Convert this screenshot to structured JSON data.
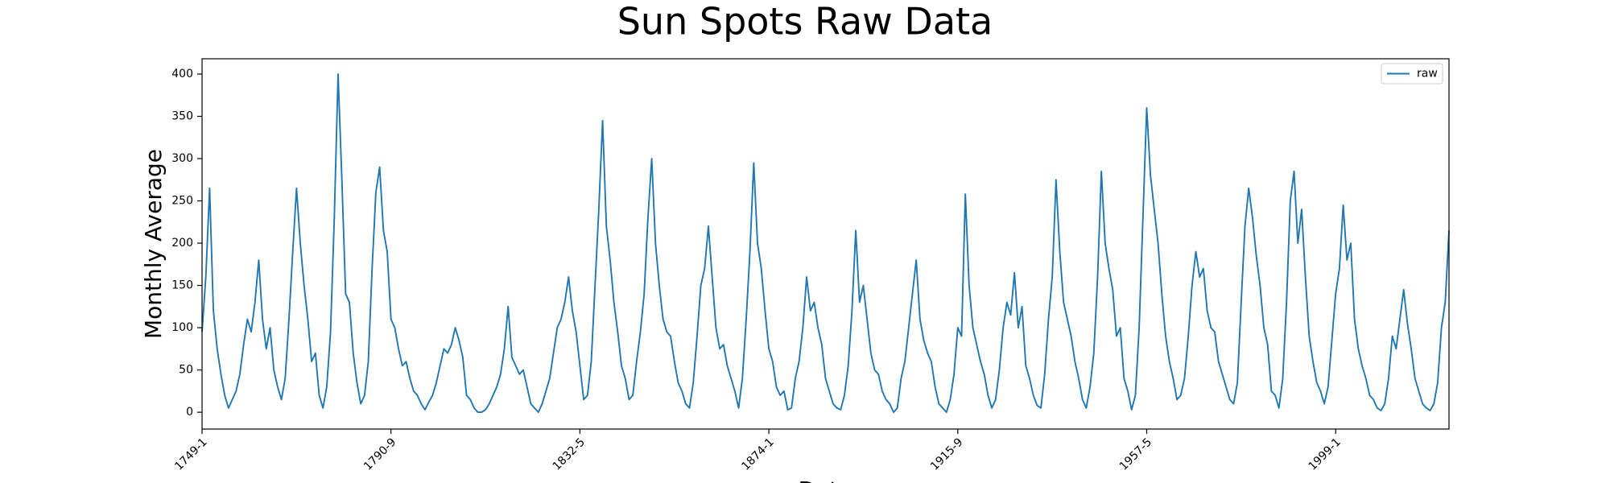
{
  "chart_data": {
    "type": "line",
    "title": "Sun Spots Raw Data",
    "x_label": "Date",
    "y_label": "Monthly Average",
    "categories": [
      "1749-1",
      null,
      null,
      null,
      null,
      null,
      null,
      null,
      null,
      null,
      null,
      null,
      null,
      null,
      null,
      null,
      null,
      null,
      null,
      null,
      null,
      null,
      null,
      null,
      null,
      null,
      null,
      null,
      null,
      null,
      null,
      null,
      null,
      null,
      null,
      null,
      null,
      null,
      null,
      null,
      null,
      null,
      null,
      null,
      null,
      null,
      null,
      null,
      null,
      null,
      "1790-9",
      null,
      null,
      null,
      null,
      null,
      null,
      null,
      null,
      null,
      null,
      null,
      null,
      null,
      null,
      null,
      null,
      null,
      null,
      null,
      null,
      null,
      null,
      null,
      null,
      null,
      null,
      null,
      null,
      null,
      null,
      null,
      null,
      null,
      null,
      null,
      null,
      null,
      null,
      null,
      null,
      null,
      null,
      null,
      null,
      null,
      null,
      null,
      null,
      null,
      "1832-5",
      null,
      null,
      null,
      null,
      null,
      null,
      null,
      null,
      null,
      null,
      null,
      null,
      null,
      null,
      null,
      null,
      null,
      null,
      null,
      null,
      null,
      null,
      null,
      null,
      null,
      null,
      null,
      null,
      null,
      null,
      null,
      null,
      null,
      null,
      null,
      null,
      null,
      null,
      null,
      null,
      null,
      null,
      null,
      null,
      null,
      null,
      null,
      null,
      null,
      "1874-1",
      null,
      null,
      null,
      null,
      null,
      null,
      null,
      null,
      null,
      null,
      null,
      null,
      null,
      null,
      null,
      null,
      null,
      null,
      null,
      null,
      null,
      null,
      null,
      null,
      null,
      null,
      null,
      null,
      null,
      null,
      null,
      null,
      null,
      null,
      null,
      null,
      null,
      null,
      null,
      null,
      null,
      null,
      null,
      null,
      null,
      null,
      null,
      null,
      null,
      "1915-9",
      null,
      null,
      null,
      null,
      null,
      null,
      null,
      null,
      null,
      null,
      null,
      null,
      null,
      null,
      null,
      null,
      null,
      null,
      null,
      null,
      null,
      null,
      null,
      null,
      null,
      null,
      null,
      null,
      null,
      null,
      null,
      null,
      null,
      null,
      null,
      null,
      null,
      null,
      null,
      null,
      null,
      null,
      null,
      null,
      null,
      null,
      null,
      null,
      null,
      "1957-5",
      null,
      null,
      null,
      null,
      null,
      null,
      null,
      null,
      null,
      null,
      null,
      null,
      null,
      null,
      null,
      null,
      null,
      null,
      null,
      null,
      null,
      null,
      null,
      null,
      null,
      null,
      null,
      null,
      null,
      null,
      null,
      null,
      null,
      null,
      null,
      null,
      null,
      null,
      null,
      null,
      null,
      null,
      null,
      null,
      null,
      null,
      null,
      null,
      null,
      "1999-1",
      null,
      null,
      null,
      null,
      null,
      null,
      null,
      null,
      null,
      null,
      null,
      null,
      null,
      null,
      null,
      null,
      null,
      null,
      null,
      null,
      null,
      null,
      null,
      null,
      null,
      null,
      null,
      null,
      null,
      null
    ],
    "series": [
      {
        "name": "raw",
        "color": "#1f77b4",
        "values": [
          95,
          160,
          265,
          120,
          75,
          45,
          20,
          5,
          15,
          25,
          45,
          80,
          110,
          95,
          130,
          180,
          110,
          75,
          100,
          50,
          30,
          15,
          40,
          110,
          190,
          265,
          200,
          150,
          110,
          60,
          70,
          20,
          5,
          30,
          95,
          230,
          400,
          275,
          140,
          130,
          70,
          35,
          10,
          20,
          60,
          170,
          260,
          290,
          215,
          190,
          110,
          100,
          75,
          55,
          60,
          40,
          25,
          20,
          10,
          3,
          12,
          20,
          35,
          55,
          75,
          70,
          80,
          100,
          85,
          65,
          20,
          15,
          5,
          0,
          0,
          3,
          10,
          20,
          30,
          45,
          75,
          125,
          65,
          55,
          45,
          50,
          30,
          10,
          5,
          0,
          10,
          25,
          40,
          70,
          100,
          110,
          130,
          160,
          120,
          95,
          55,
          15,
          20,
          60,
          150,
          240,
          345,
          220,
          180,
          130,
          95,
          55,
          40,
          15,
          20,
          60,
          95,
          140,
          230,
          300,
          200,
          150,
          110,
          95,
          90,
          60,
          35,
          25,
          10,
          5,
          35,
          90,
          150,
          170,
          220,
          160,
          100,
          75,
          80,
          55,
          40,
          25,
          5,
          40,
          110,
          190,
          295,
          200,
          170,
          120,
          75,
          60,
          30,
          20,
          25,
          3,
          5,
          40,
          60,
          100,
          160,
          120,
          130,
          100,
          80,
          40,
          25,
          10,
          5,
          3,
          20,
          55,
          120,
          215,
          130,
          150,
          110,
          70,
          50,
          45,
          25,
          15,
          10,
          0,
          5,
          40,
          60,
          100,
          140,
          180,
          110,
          85,
          70,
          60,
          30,
          10,
          5,
          0,
          15,
          45,
          100,
          90,
          258,
          150,
          100,
          80,
          60,
          45,
          20,
          5,
          15,
          50,
          100,
          130,
          115,
          165,
          100,
          125,
          55,
          40,
          20,
          8,
          5,
          45,
          110,
          160,
          275,
          190,
          130,
          110,
          90,
          60,
          40,
          15,
          5,
          30,
          70,
          160,
          285,
          200,
          170,
          145,
          90,
          100,
          40,
          25,
          3,
          20,
          100,
          230,
          360,
          280,
          240,
          200,
          140,
          90,
          60,
          40,
          15,
          20,
          40,
          90,
          150,
          190,
          160,
          170,
          120,
          100,
          95,
          60,
          45,
          30,
          15,
          10,
          35,
          130,
          220,
          265,
          230,
          185,
          150,
          100,
          80,
          25,
          20,
          5,
          40,
          130,
          250,
          285,
          200,
          240,
          160,
          90,
          60,
          35,
          25,
          10,
          30,
          85,
          140,
          170,
          245,
          180,
          200,
          110,
          75,
          55,
          40,
          20,
          15,
          5,
          2,
          10,
          40,
          90,
          75,
          110,
          145,
          105,
          75,
          40,
          25,
          10,
          5,
          2,
          10,
          35,
          100,
          130,
          215
        ]
      }
    ],
    "ylim": [
      -19.9,
      418.1
    ],
    "yticks": [
      0,
      50,
      100,
      150,
      200,
      250,
      300,
      350,
      400
    ],
    "legend": "upper right",
    "grid": false
  }
}
